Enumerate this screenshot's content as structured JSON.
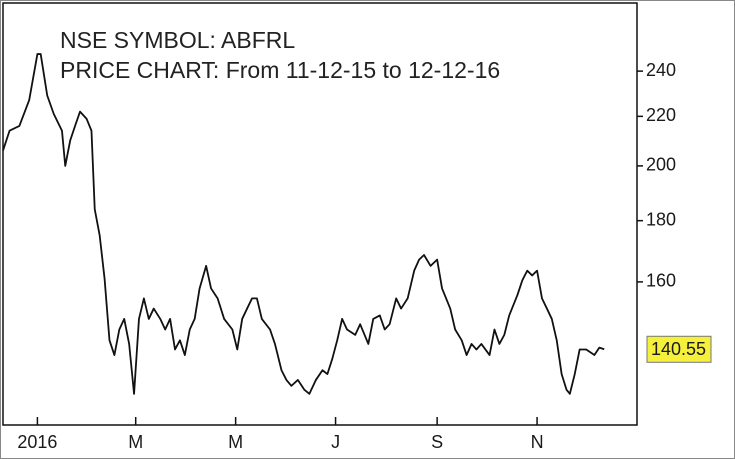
{
  "chart_data": {
    "type": "line",
    "title": "NSE SYMBOL: ABFRL",
    "subtitle": "PRICE CHART: From 11-12-15 to 12-12-16",
    "x": [
      0,
      4,
      10,
      16,
      21,
      23,
      27,
      31,
      36,
      38,
      41,
      44,
      47,
      51,
      54,
      56,
      59,
      62,
      65,
      68,
      71,
      74,
      77,
      80,
      83,
      86,
      89,
      92,
      96,
      99,
      102,
      105,
      108,
      111,
      114,
      117,
      120,
      124,
      127,
      131,
      135,
      140,
      143,
      146,
      149,
      152,
      155,
      158,
      163,
      166,
      170,
      173,
      176,
      180,
      184,
      187,
      191,
      195,
      198,
      201,
      204,
      207,
      210,
      215,
      218,
      223,
      226,
      230,
      233,
      236,
      240,
      243,
      247,
      251,
      254,
      257,
      261,
      265,
      268,
      273,
      276,
      280,
      283,
      286,
      289,
      292,
      297,
      300,
      303,
      306,
      309,
      314,
      317,
      320,
      323,
      326,
      329,
      332,
      335,
      338,
      341,
      344,
      346,
      349,
      352,
      356,
      361,
      364,
      367
    ],
    "values": [
      206,
      214,
      216,
      227,
      248,
      248,
      229,
      221,
      214,
      200,
      210,
      216,
      222,
      219,
      214,
      184,
      175,
      161,
      143,
      139,
      146,
      149,
      142,
      129,
      149,
      155,
      149,
      152,
      149,
      146,
      149,
      140.5,
      143,
      139,
      146,
      149,
      158,
      165,
      158,
      155,
      149,
      146,
      140.5,
      149,
      152,
      155,
      155,
      149,
      146,
      142,
      135,
      132.5,
      131,
      132.5,
      130,
      129,
      132.5,
      135,
      134,
      138,
      143,
      149,
      146,
      144.5,
      147.5,
      142,
      149,
      150,
      146,
      147.5,
      155,
      152,
      155,
      163.5,
      167,
      168.5,
      165,
      167,
      158,
      152,
      146,
      143,
      139,
      142,
      140.5,
      142,
      139,
      146,
      142,
      144.5,
      150,
      156,
      160.5,
      163.5,
      162,
      163.5,
      155,
      152,
      149,
      143,
      134,
      130,
      129,
      134,
      140.5,
      140.5,
      139,
      141,
      140.55
    ],
    "color": "#111111",
    "xlim": [
      0,
      387
    ],
    "xticks": [
      {
        "value": 21,
        "label": "2016"
      },
      {
        "value": 81,
        "label": "M"
      },
      {
        "value": 142,
        "label": "M"
      },
      {
        "value": 203,
        "label": "J"
      },
      {
        "value": 265,
        "label": "S"
      },
      {
        "value": 326,
        "label": "N"
      }
    ],
    "ylim": [
      121.5,
      273.6
    ],
    "yticks": [
      160,
      180,
      200,
      220,
      240
    ],
    "log_scale": true,
    "y_axis_side": "right",
    "last_value_color": "#f5f03c"
  }
}
